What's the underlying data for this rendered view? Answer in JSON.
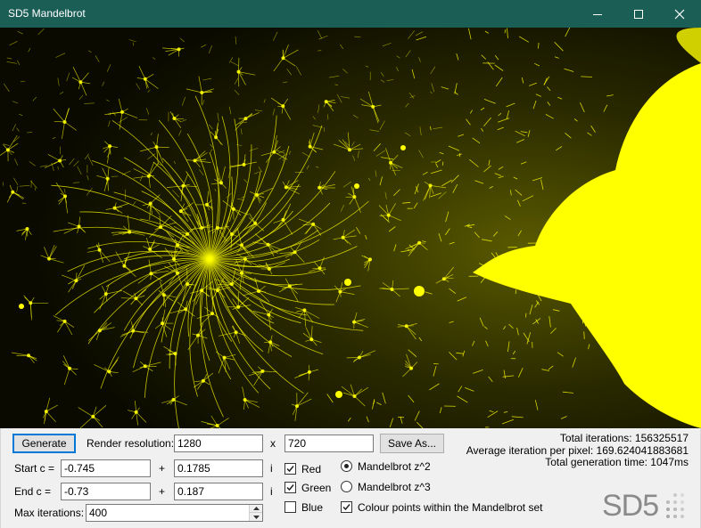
{
  "window": {
    "title": "SD5 Mandelbrot"
  },
  "render": {
    "start_label": "Start c =",
    "end_label": "End c ="
  },
  "controls": {
    "generate_label": "Generate",
    "resolution_label": "Render resolution:",
    "width": "1280",
    "x_sep": "x",
    "height": "720",
    "save_label": "Save As...",
    "start_label": "Start c =",
    "start_real": "-0.745",
    "plus1": "+",
    "start_imag": "0.1785",
    "i1": "i",
    "end_label": "End c =",
    "end_real": "-0.73",
    "plus2": "+",
    "end_imag": "0.187",
    "i2": "i",
    "max_iter_label": "Max iterations:",
    "max_iter": "400"
  },
  "colours": {
    "red": {
      "label": "Red",
      "checked": true
    },
    "green": {
      "label": "Green",
      "checked": true
    },
    "blue": {
      "label": "Blue",
      "checked": false
    }
  },
  "formula": {
    "z2": {
      "label": "Mandelbrot z^2",
      "selected": true
    },
    "z3": {
      "label": "Mandelbrot z^3",
      "selected": false
    }
  },
  "colour_inside": {
    "label": "Colour points within the Mandelbrot set",
    "checked": true
  },
  "stats": {
    "total_iterations": "Total iterations: 156325517",
    "average": "Average iteration per pixel: 169.624041883681",
    "time": "Total generation time: 1047ms"
  },
  "logo": {
    "text": "SD5",
    "color": "#8a8a8a"
  },
  "colors": {
    "titlebar": "#1b5e56",
    "fractal": "#ffff00",
    "focus": "#0078d7"
  },
  "icons": [
    "minimize-icon",
    "maximize-icon",
    "close-icon",
    "checkmark-icon",
    "spin-up-icon",
    "spin-down-icon"
  ]
}
